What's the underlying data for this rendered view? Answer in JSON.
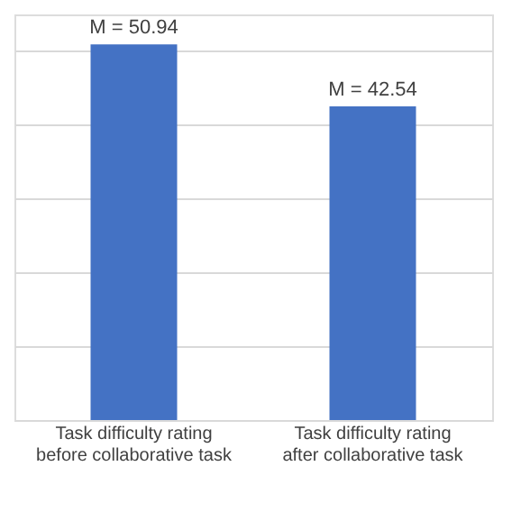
{
  "chart_data": {
    "type": "bar",
    "categories": [
      "Task difficulty rating before collaborative task",
      "Task difficulty rating after collaborative task"
    ],
    "values": [
      50.94,
      42.54
    ],
    "color": "#4472c4",
    "value_labels": [
      "M = 50.94",
      "M = 42.54"
    ],
    "tick_labels": "x",
    "grid": "y"
  }
}
